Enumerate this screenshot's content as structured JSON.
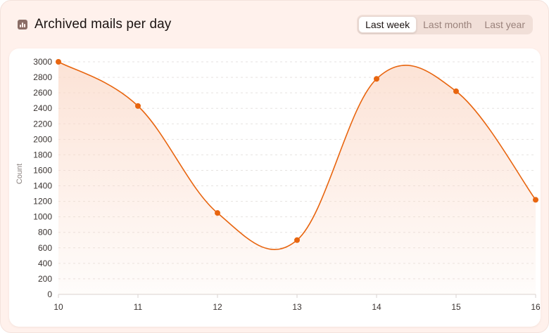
{
  "header": {
    "title": "Archived mails per day",
    "title_icon": "bar-chart-icon",
    "tabs": [
      {
        "label": "Last week",
        "active": true
      },
      {
        "label": "Last month",
        "active": false
      },
      {
        "label": "Last year",
        "active": false
      }
    ]
  },
  "colors": {
    "line": "#e8650f",
    "fill": "#fbd9c8",
    "card": "#fff1ec"
  },
  "chart_data": {
    "type": "area",
    "title": "Archived mails per day",
    "xlabel": "",
    "ylabel": "Count",
    "x": [
      10,
      11,
      12,
      13,
      14,
      15,
      16
    ],
    "x_ticks": [
      "10",
      "11",
      "12",
      "13",
      "14",
      "15",
      "16"
    ],
    "series": [
      {
        "values": [
          3000,
          2430,
          1050,
          700,
          2780,
          2620,
          1220
        ]
      }
    ],
    "ylim": [
      0,
      3000
    ],
    "y_ticks": [
      0,
      200,
      400,
      600,
      800,
      1000,
      1200,
      1400,
      1600,
      1800,
      2000,
      2200,
      2400,
      2600,
      2800,
      3000
    ],
    "grid": true,
    "legend": "none",
    "smooth": true
  }
}
